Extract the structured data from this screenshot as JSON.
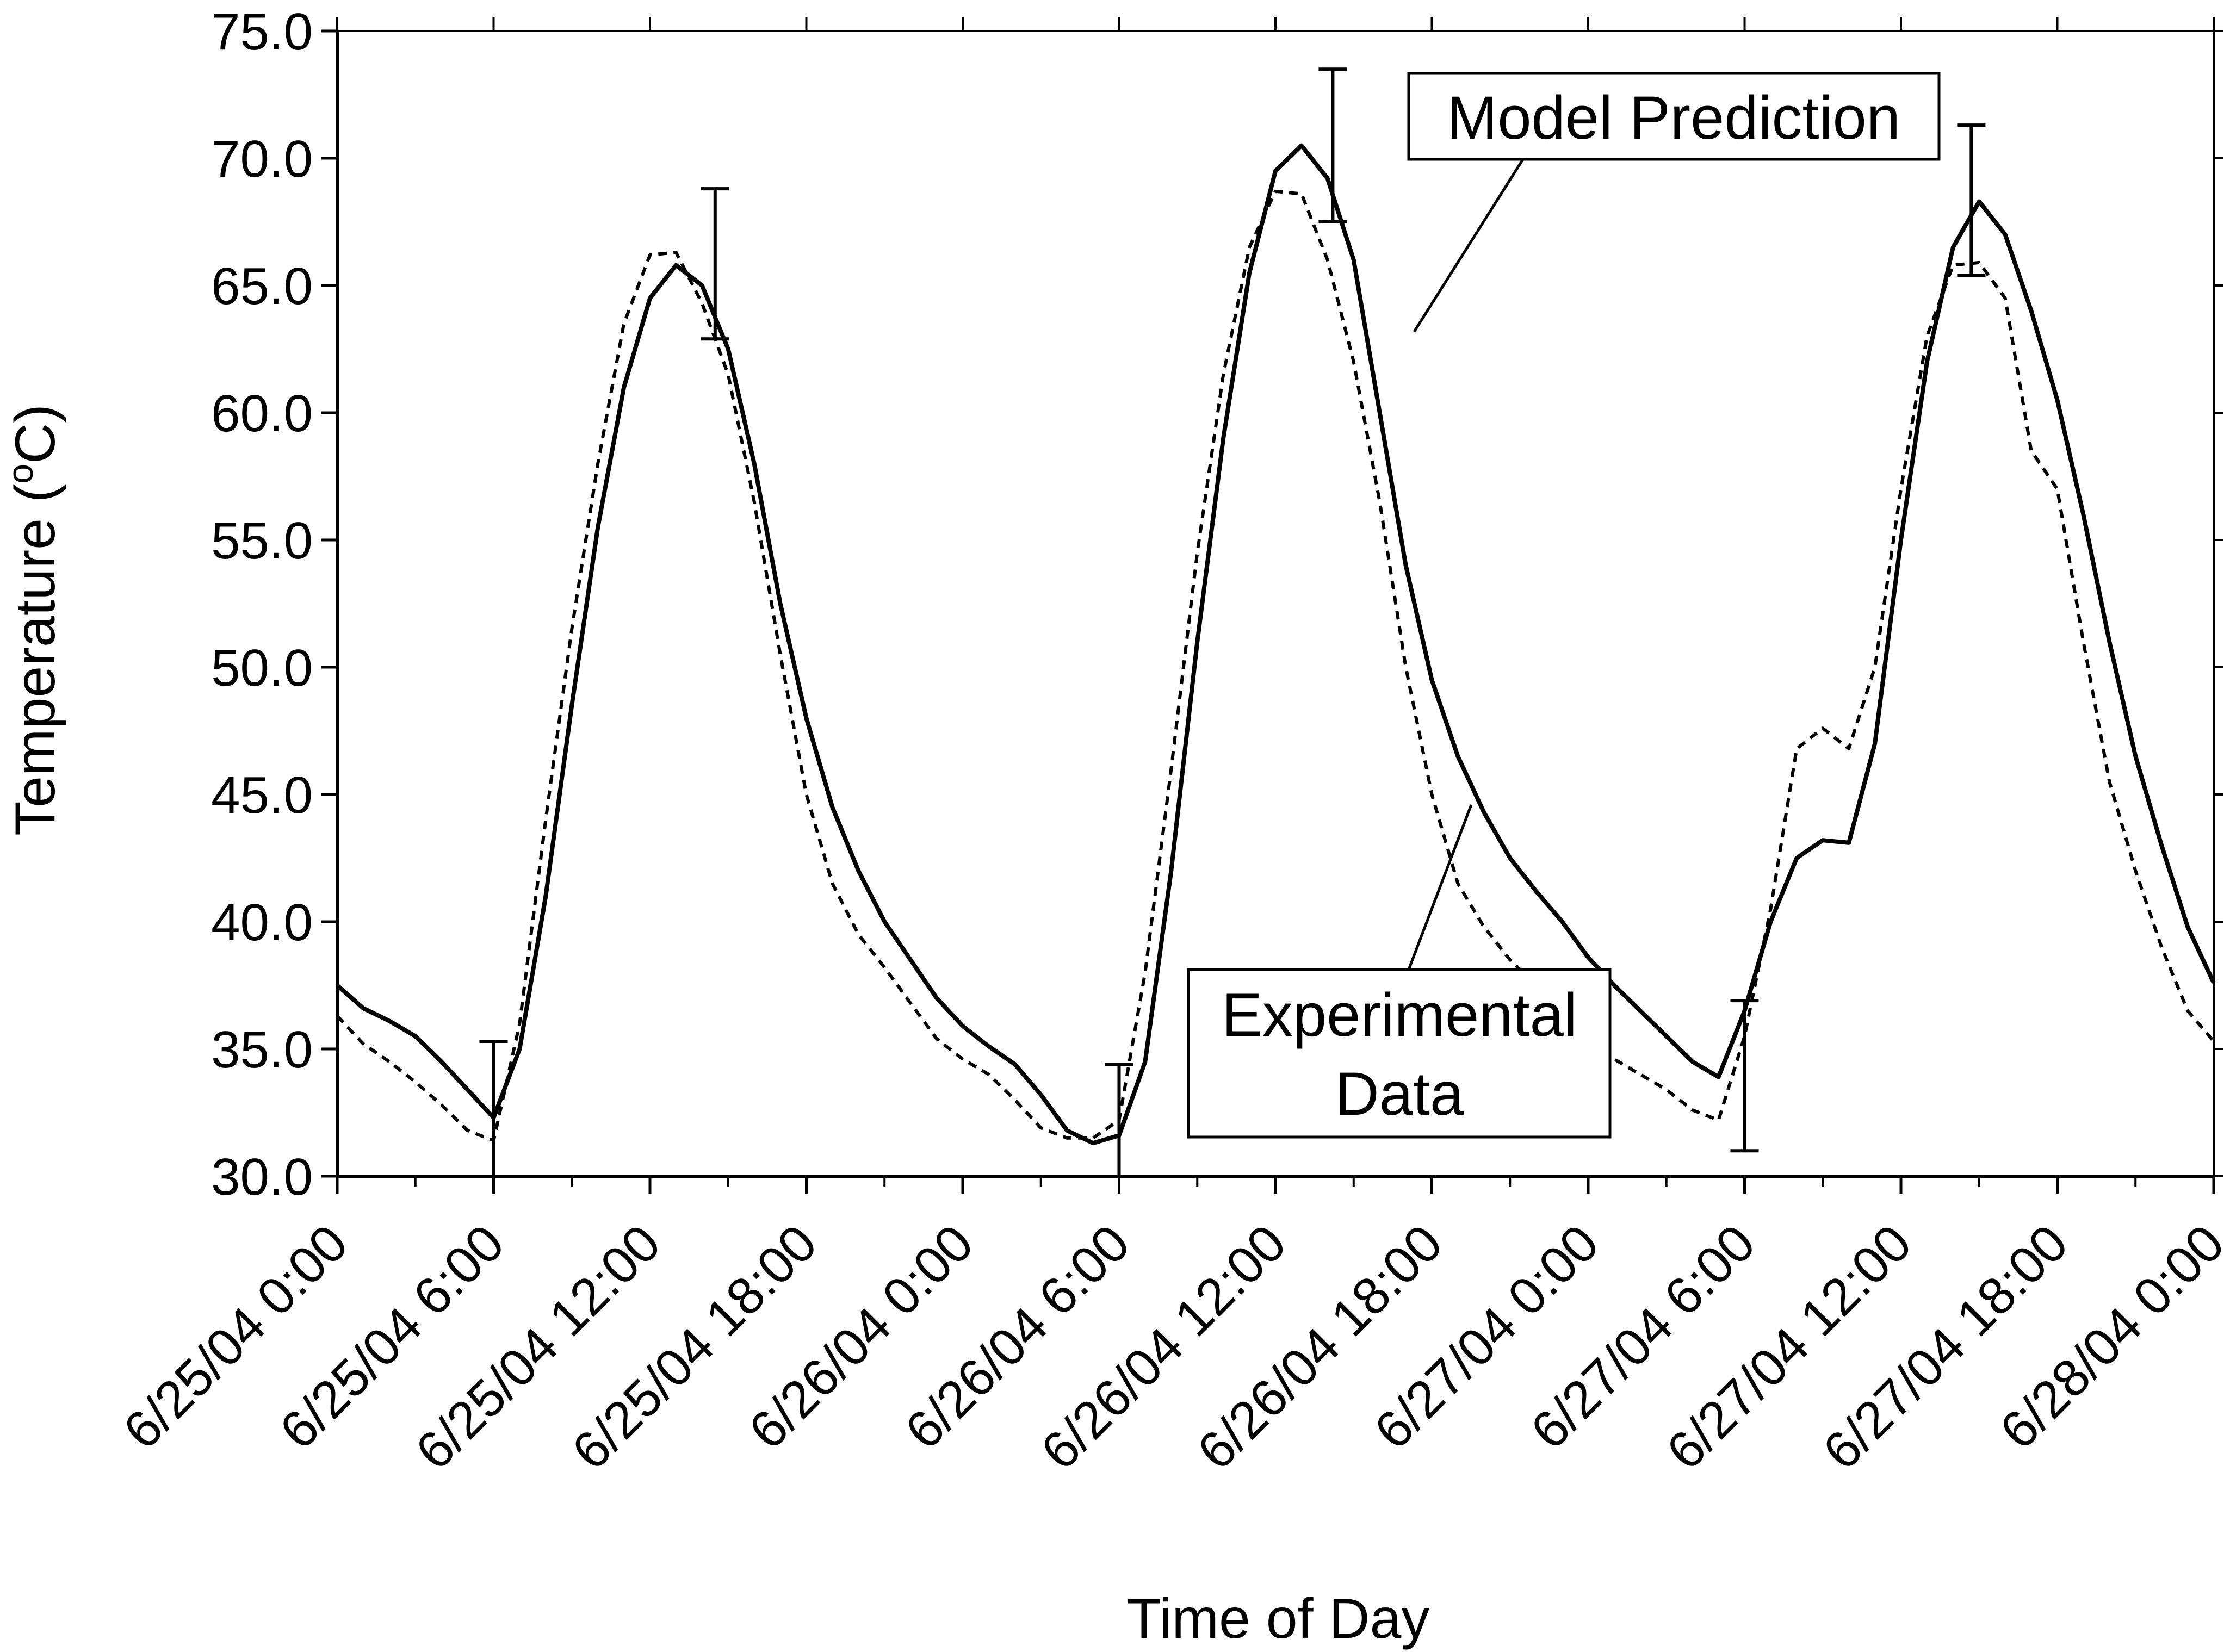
{
  "chart_data": {
    "type": "line",
    "title": "",
    "xlabel": "Time of Day",
    "ylabel": "Temperature (°C)",
    "ylabel_parts": {
      "main": "Temperature (",
      "sup": "o",
      "tail": "C)"
    },
    "ylim": [
      30.0,
      75.0
    ],
    "yticks": [
      "30.0",
      "35.0",
      "40.0",
      "45.0",
      "50.0",
      "55.0",
      "60.0",
      "65.0",
      "70.0",
      "75.0"
    ],
    "xlim_hours": [
      0,
      72
    ],
    "xticks": [
      "6/25/04 0:00",
      "6/25/04 6:00",
      "6/25/04 12:00",
      "6/25/04 18:00",
      "6/26/04 0:00",
      "6/26/04 6:00",
      "6/26/04 12:00",
      "6/26/04 18:00",
      "6/27/04 0:00",
      "6/27/04 6:00",
      "6/27/04 12:00",
      "6/27/04 18:00",
      "6/28/04 0:00"
    ],
    "grid": false,
    "legend": "none",
    "annotations": [
      {
        "text": "Model Prediction",
        "points_to": "Model Prediction"
      },
      {
        "text_lines": [
          "Experimental",
          "Data"
        ],
        "points_to": "Experimental Data"
      }
    ],
    "series": [
      {
        "name": "Model Prediction",
        "style": "solid",
        "x": [
          0,
          1,
          2,
          3,
          4,
          5,
          6,
          7,
          8,
          9,
          10,
          11,
          12,
          13,
          14,
          15,
          16,
          17,
          18,
          19,
          20,
          21,
          22,
          23,
          24,
          25,
          26,
          27,
          28,
          29,
          30,
          31,
          32,
          33,
          34,
          35,
          36,
          37,
          38,
          39,
          40,
          41,
          42,
          43,
          44,
          45,
          46,
          47,
          48,
          49,
          50,
          51,
          52,
          53,
          54,
          55,
          56,
          57,
          58,
          59,
          60,
          61,
          62,
          63,
          64,
          65,
          66,
          67,
          68,
          69,
          70,
          71,
          72
        ],
        "y": [
          37.5,
          36.6,
          36.1,
          35.5,
          34.5,
          33.4,
          32.3,
          35.0,
          41.0,
          48.5,
          55.5,
          61.0,
          64.5,
          65.8,
          65.0,
          62.5,
          58.0,
          52.5,
          48.0,
          44.5,
          42.0,
          40.0,
          38.5,
          37.0,
          35.9,
          35.1,
          34.4,
          33.2,
          31.8,
          31.3,
          31.6,
          34.5,
          42.0,
          51.0,
          59.0,
          65.5,
          69.5,
          70.5,
          69.2,
          66.0,
          60.0,
          54.0,
          49.5,
          46.5,
          44.3,
          42.5,
          41.2,
          40.0,
          38.6,
          37.5,
          36.5,
          35.5,
          34.5,
          33.9,
          36.5,
          40.0,
          42.5,
          43.2,
          43.1,
          47.0,
          55.0,
          62.0,
          66.5,
          68.3,
          67.0,
          64.0,
          60.5,
          56.0,
          51.0,
          46.5,
          43.0,
          39.8,
          37.6
        ]
      },
      {
        "name": "Experimental Data",
        "style": "dashed",
        "x": [
          0,
          1,
          2,
          3,
          4,
          5,
          6,
          7,
          8,
          9,
          10,
          11,
          12,
          13,
          14,
          15,
          16,
          17,
          18,
          19,
          20,
          21,
          22,
          23,
          24,
          25,
          26,
          27,
          28,
          29,
          30,
          31,
          32,
          33,
          34,
          35,
          36,
          37,
          38,
          39,
          40,
          41,
          42,
          43,
          44,
          45,
          46,
          47,
          48,
          49,
          50,
          51,
          52,
          53,
          54,
          55,
          56,
          57,
          58,
          59,
          60,
          61,
          62,
          63,
          64,
          65,
          66,
          67,
          68,
          69,
          70,
          71,
          72
        ],
        "y": [
          36.3,
          35.2,
          34.5,
          33.7,
          32.8,
          31.8,
          31.4,
          36.0,
          44.0,
          51.5,
          58.0,
          63.5,
          66.2,
          66.3,
          64.3,
          61.5,
          56.5,
          50.5,
          45.0,
          41.5,
          39.5,
          38.2,
          36.8,
          35.4,
          34.6,
          34.0,
          33.0,
          31.9,
          31.5,
          31.5,
          32.2,
          38.0,
          46.0,
          54.5,
          61.5,
          66.5,
          68.7,
          68.6,
          66.0,
          62.0,
          56.5,
          50.0,
          45.0,
          41.5,
          39.8,
          38.5,
          37.5,
          36.3,
          35.4,
          34.6,
          34.0,
          33.4,
          32.6,
          32.2,
          35.5,
          40.5,
          46.8,
          47.6,
          46.8,
          50.0,
          57.0,
          63.0,
          65.8,
          65.9,
          64.5,
          58.5,
          57.0,
          51.0,
          45.5,
          42.0,
          39.0,
          36.5,
          35.3
        ]
      }
    ],
    "error_bars": [
      {
        "x": 6,
        "y": 32.3,
        "lower": 30.0,
        "upper": 35.3
      },
      {
        "x": 14.5,
        "y": 65.8,
        "lower": 62.9,
        "upper": 68.8
      },
      {
        "x": 30,
        "y": 31.5,
        "lower": 30.0,
        "upper": 34.4
      },
      {
        "x": 38.2,
        "y": 70.5,
        "lower": 67.5,
        "upper": 73.5
      },
      {
        "x": 54,
        "y": 33.9,
        "lower": 31.0,
        "upper": 36.9
      },
      {
        "x": 62.7,
        "y": 68.3,
        "lower": 65.4,
        "upper": 71.3
      }
    ]
  }
}
